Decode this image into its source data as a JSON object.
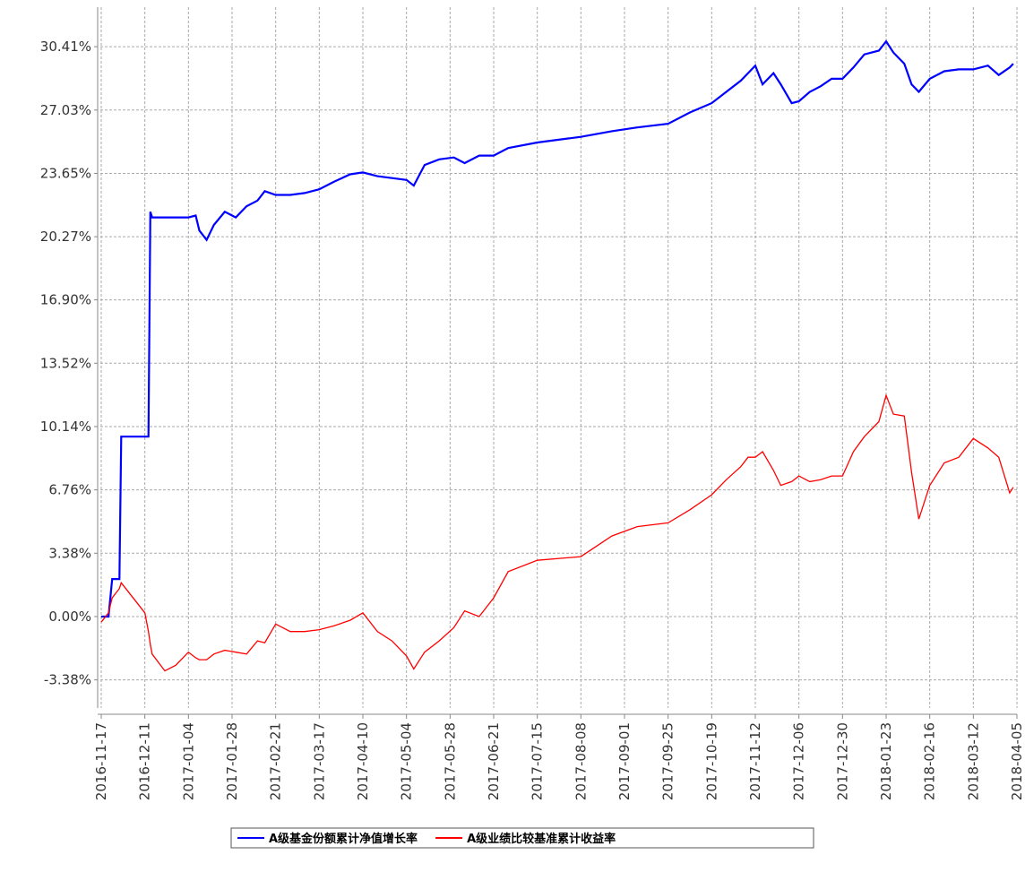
{
  "chart_data": {
    "type": "line",
    "x": [
      "2016-11-17",
      "2016-11-21",
      "2016-11-23",
      "2016-11-27",
      "2016-11-28",
      "2016-12-11",
      "2016-12-13",
      "2016-12-14",
      "2016-12-15",
      "2016-12-22",
      "2016-12-28",
      "2017-01-04",
      "2017-01-08",
      "2017-01-10",
      "2017-01-14",
      "2017-01-18",
      "2017-01-24",
      "2017-01-30",
      "2017-02-05",
      "2017-02-11",
      "2017-02-15",
      "2017-02-21",
      "2017-03-01",
      "2017-03-09",
      "2017-03-17",
      "2017-03-25",
      "2017-04-03",
      "2017-04-10",
      "2017-04-18",
      "2017-04-26",
      "2017-05-04",
      "2017-05-08",
      "2017-05-14",
      "2017-05-22",
      "2017-05-30",
      "2017-06-05",
      "2017-06-13",
      "2017-06-21",
      "2017-06-29",
      "2017-07-15",
      "2017-08-08",
      "2017-08-25",
      "2017-09-08",
      "2017-09-25",
      "2017-10-07",
      "2017-10-19",
      "2017-10-27",
      "2017-11-04",
      "2017-11-08",
      "2017-11-12",
      "2017-11-16",
      "2017-11-22",
      "2017-11-26",
      "2017-12-02",
      "2017-12-06",
      "2017-12-12",
      "2017-12-18",
      "2017-12-24",
      "2017-12-30",
      "2018-01-05",
      "2018-01-11",
      "2018-01-19",
      "2018-01-23",
      "2018-01-27",
      "2018-02-02",
      "2018-02-06",
      "2018-02-10",
      "2018-02-16",
      "2018-02-24",
      "2018-03-04",
      "2018-03-12",
      "2018-03-20",
      "2018-03-26",
      "2018-04-01",
      "2018-04-03"
    ],
    "series": [
      {
        "name": "A级基金份额累计净值增长率",
        "color": "#0000ff",
        "values": [
          0,
          0,
          2.0,
          2.0,
          9.6,
          9.6,
          9.6,
          21.6,
          21.3,
          21.3,
          21.3,
          21.3,
          21.4,
          20.6,
          20.1,
          20.9,
          21.6,
          21.3,
          21.9,
          22.2,
          22.7,
          22.5,
          22.5,
          22.6,
          22.8,
          23.2,
          23.6,
          23.7,
          23.5,
          23.4,
          23.3,
          23.0,
          24.1,
          24.4,
          24.5,
          24.2,
          24.6,
          24.6,
          25.0,
          25.3,
          25.6,
          25.9,
          26.1,
          26.3,
          26.9,
          27.4,
          28.0,
          28.6,
          29.0,
          29.4,
          28.4,
          29.0,
          28.4,
          27.4,
          27.5,
          28.0,
          28.3,
          28.7,
          28.7,
          29.3,
          30.0,
          30.2,
          30.7,
          30.1,
          29.5,
          28.4,
          28.0,
          28.7,
          29.1,
          29.2,
          29.2,
          29.4,
          28.9,
          29.3,
          29.5
        ]
      },
      {
        "name": "A级业绩比较基准累计收益率",
        "color": "#ff0000",
        "values": [
          -0.3,
          0.2,
          1.0,
          1.5,
          1.8,
          0.2,
          -0.8,
          -1.5,
          -2.0,
          -2.9,
          -2.6,
          -1.9,
          -2.2,
          -2.3,
          -2.3,
          -2.0,
          -1.8,
          -1.9,
          -2.0,
          -1.3,
          -1.4,
          -0.4,
          -0.8,
          -0.8,
          -0.7,
          -0.5,
          -0.2,
          0.2,
          -0.8,
          -1.3,
          -2.1,
          -2.8,
          -1.9,
          -1.3,
          -0.6,
          0.3,
          0.0,
          1.0,
          2.4,
          3.0,
          3.2,
          4.3,
          4.8,
          5.0,
          5.7,
          6.5,
          7.3,
          8.0,
          8.5,
          8.5,
          8.8,
          7.8,
          7.0,
          7.2,
          7.5,
          7.2,
          7.3,
          7.5,
          7.5,
          8.8,
          9.6,
          10.4,
          11.8,
          10.8,
          10.7,
          7.7,
          5.2,
          7.0,
          8.2,
          8.5,
          9.5,
          9.0,
          8.5,
          6.6,
          6.9
        ]
      }
    ],
    "xlim": [
      "2016-11-17",
      "2018-04-05"
    ],
    "xticks": [
      "2016-11-17",
      "2016-12-11",
      "2017-01-04",
      "2017-01-28",
      "2017-02-21",
      "2017-03-17",
      "2017-04-10",
      "2017-05-04",
      "2017-05-28",
      "2017-06-21",
      "2017-07-15",
      "2017-08-08",
      "2017-09-01",
      "2017-09-25",
      "2017-10-19",
      "2017-11-12",
      "2017-12-06",
      "2017-12-30",
      "2018-01-23",
      "2018-02-16",
      "2018-03-12",
      "2018-04-05"
    ],
    "ylim": [
      -4.88,
      32.52
    ],
    "yticks": [
      {
        "value": -3.38,
        "label": "-3.38%"
      },
      {
        "value": 0,
        "label": "0.00%"
      },
      {
        "value": 3.38,
        "label": "3.38%"
      },
      {
        "value": 6.76,
        "label": "6.76%"
      },
      {
        "value": 10.14,
        "label": "10.14%"
      },
      {
        "value": 13.52,
        "label": "13.52%"
      },
      {
        "value": 16.9,
        "label": "16.90%"
      },
      {
        "value": 20.27,
        "label": "20.27%"
      },
      {
        "value": 23.65,
        "label": "23.65%"
      },
      {
        "value": 27.03,
        "label": "27.03%"
      },
      {
        "value": 30.41,
        "label": "30.41%"
      }
    ],
    "grid": true
  }
}
